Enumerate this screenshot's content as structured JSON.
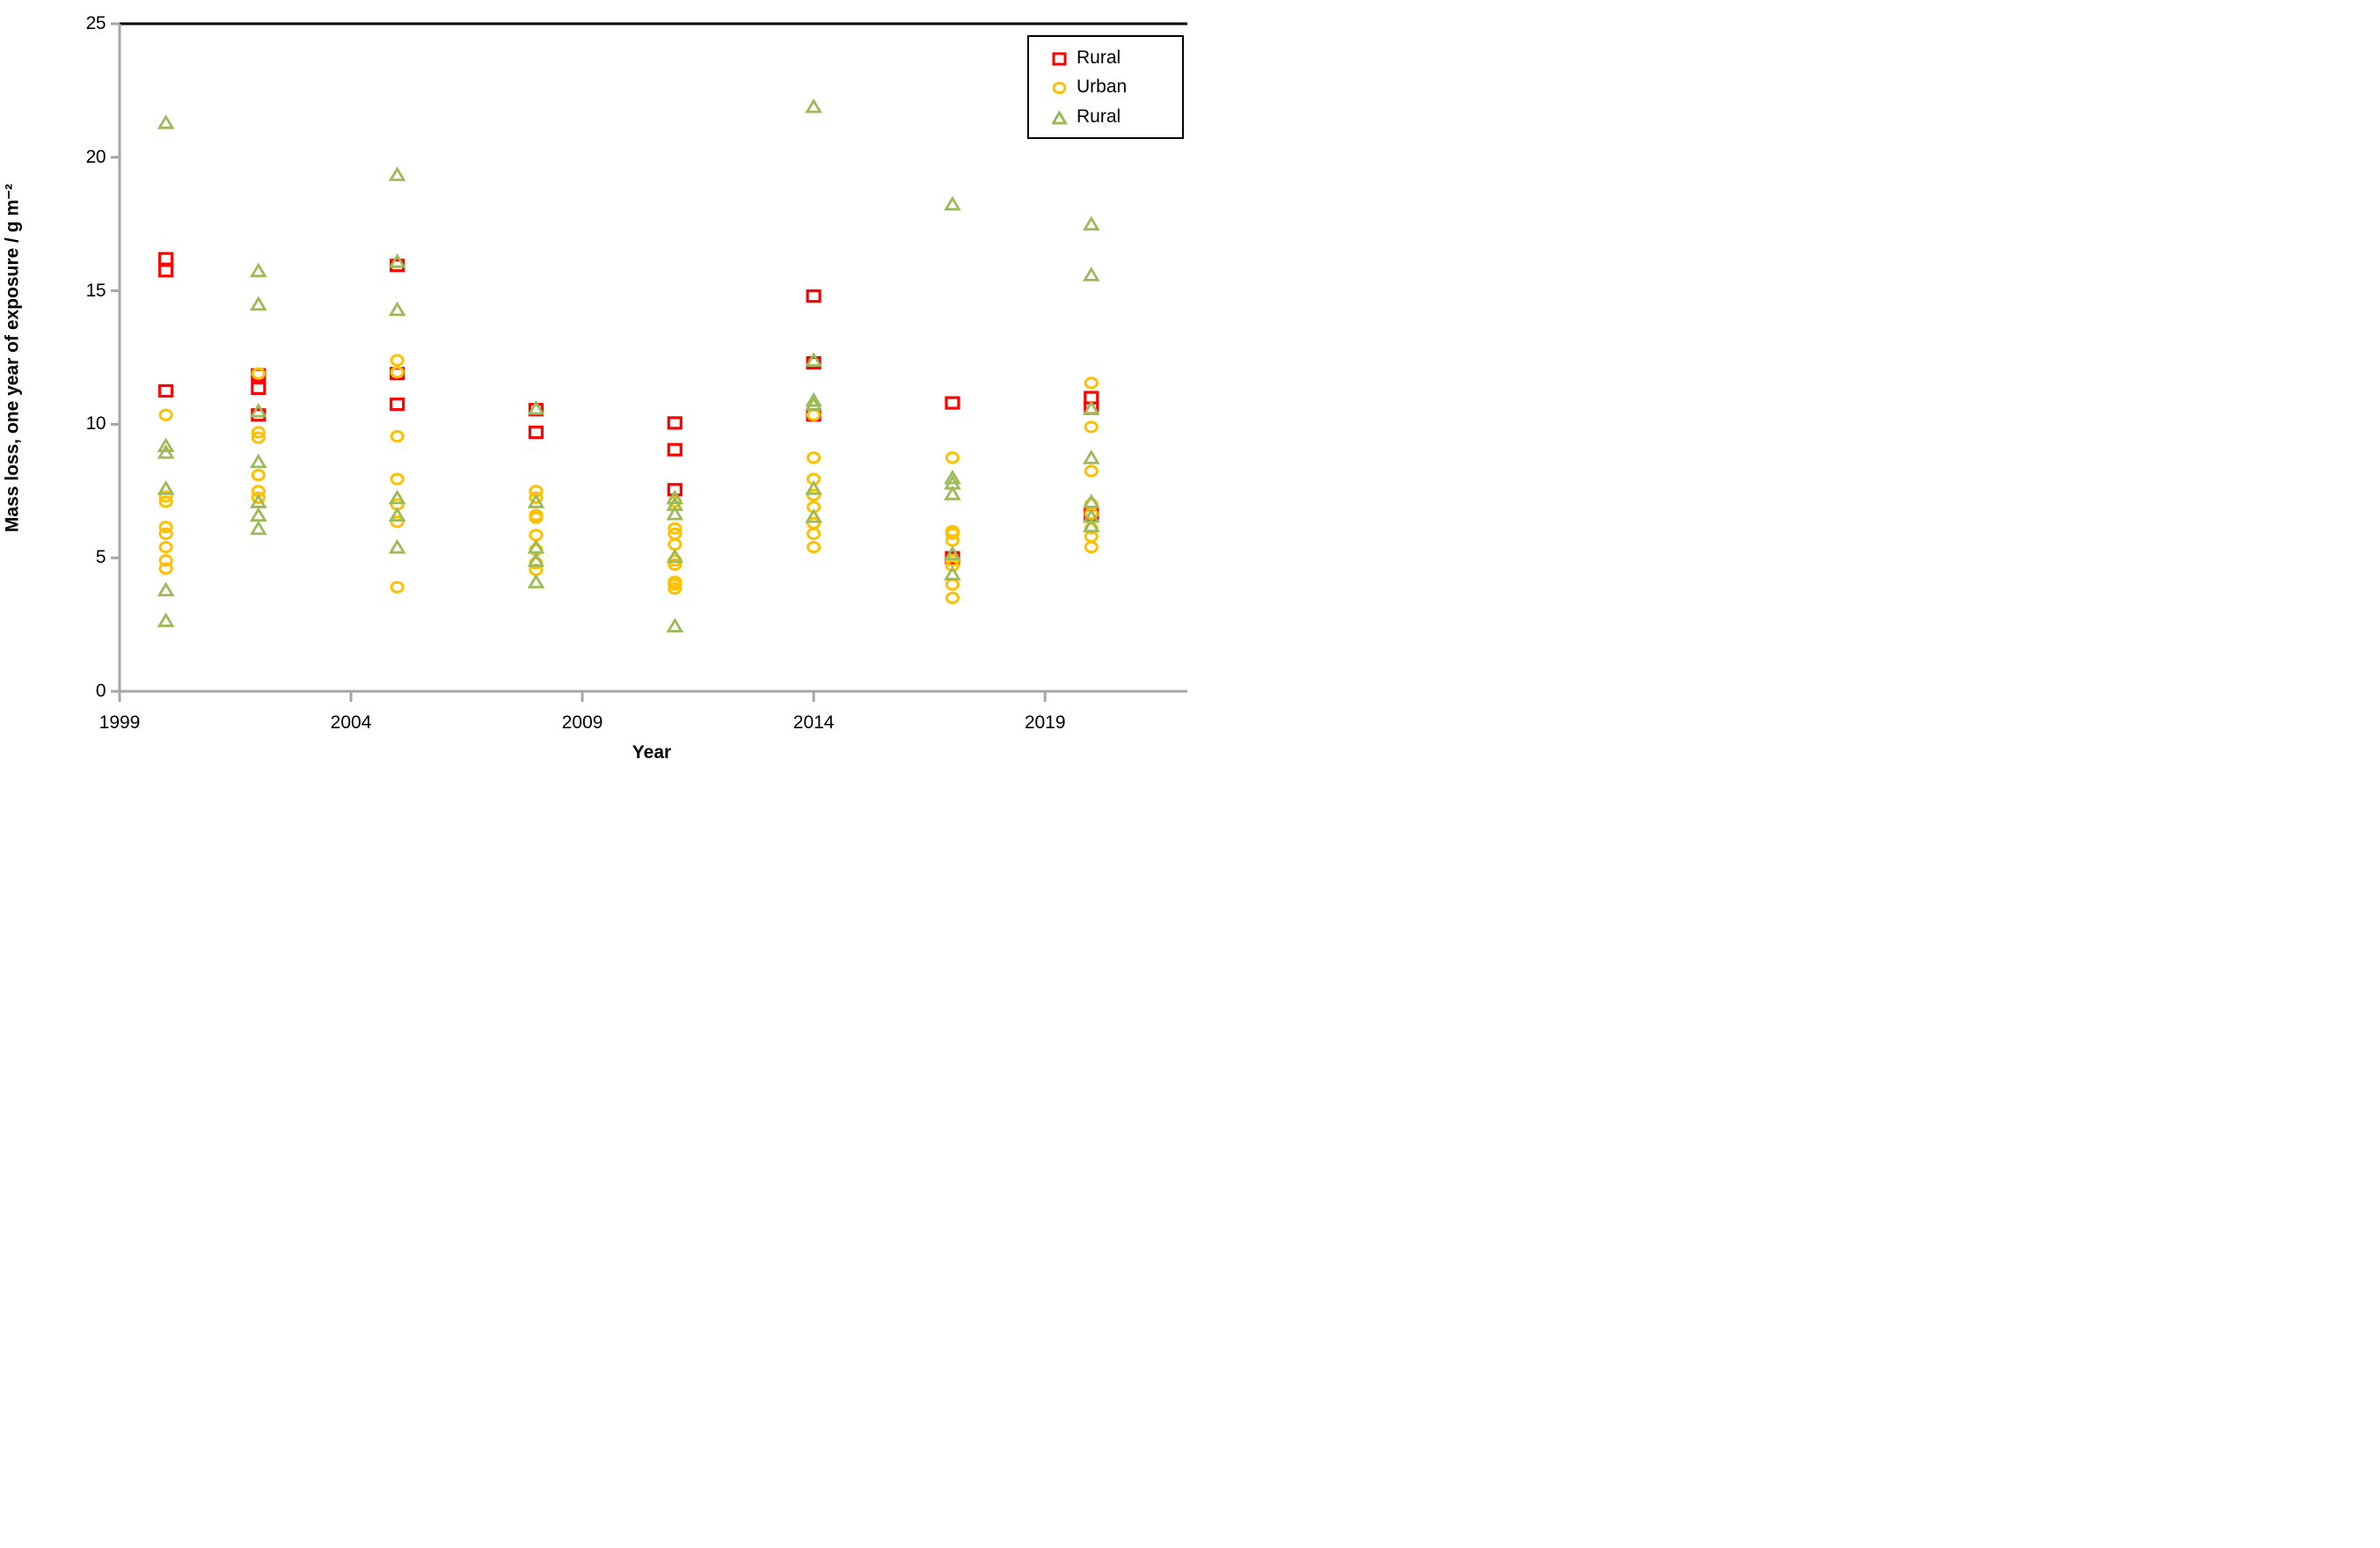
{
  "chart_data": {
    "type": "scatter",
    "title": "",
    "xlabel": "Year",
    "ylabel": "Mass loss, one year of exposure / g m⁻²",
    "xlim": [
      1999,
      2022
    ],
    "ylim": [
      0,
      25
    ],
    "x_ticks": [
      1999,
      2004,
      2009,
      2014,
      2019
    ],
    "y_ticks": [
      0,
      5,
      10,
      15,
      20,
      25
    ],
    "grid": "off",
    "legend_position": "top-right",
    "legend": [
      {
        "label": "Rural",
        "marker": "square",
        "color": "#FF0000"
      },
      {
        "label": "Urban",
        "marker": "circle",
        "color": "#FFC000"
      },
      {
        "label": "Rural",
        "marker": "triangle",
        "color": "#9BBB59"
      }
    ],
    "series": [
      {
        "name": "Rural",
        "marker": "square",
        "color": "#FF0000",
        "points": [
          {
            "x": 2000,
            "y": 16.2
          },
          {
            "x": 2000,
            "y": 15.75
          },
          {
            "x": 2000,
            "y": 11.25
          },
          {
            "x": 2002,
            "y": 11.85
          },
          {
            "x": 2002,
            "y": 11.35
          },
          {
            "x": 2002,
            "y": 10.35
          },
          {
            "x": 2005,
            "y": 15.95
          },
          {
            "x": 2005,
            "y": 11.9
          },
          {
            "x": 2005,
            "y": 10.75
          },
          {
            "x": 2008,
            "y": 10.55
          },
          {
            "x": 2008,
            "y": 9.7
          },
          {
            "x": 2011,
            "y": 10.05
          },
          {
            "x": 2011,
            "y": 9.05
          },
          {
            "x": 2011,
            "y": 7.55
          },
          {
            "x": 2014,
            "y": 14.8
          },
          {
            "x": 2014,
            "y": 12.3
          },
          {
            "x": 2014,
            "y": 10.35
          },
          {
            "x": 2017,
            "y": 10.8
          },
          {
            "x": 2017,
            "y": 5.0
          },
          {
            "x": 2020,
            "y": 11.0
          },
          {
            "x": 2020,
            "y": 10.6
          },
          {
            "x": 2020,
            "y": 6.6
          }
        ]
      },
      {
        "name": "Urban",
        "marker": "circle",
        "color": "#FFC000",
        "points": [
          {
            "x": 2000,
            "y": 10.35
          },
          {
            "x": 2000,
            "y": 7.3
          },
          {
            "x": 2000,
            "y": 7.1
          },
          {
            "x": 2000,
            "y": 6.15
          },
          {
            "x": 2000,
            "y": 5.9
          },
          {
            "x": 2000,
            "y": 5.4
          },
          {
            "x": 2000,
            "y": 4.9
          },
          {
            "x": 2000,
            "y": 4.6
          },
          {
            "x": 2002,
            "y": 11.9
          },
          {
            "x": 2002,
            "y": 9.7
          },
          {
            "x": 2002,
            "y": 9.5
          },
          {
            "x": 2002,
            "y": 8.1
          },
          {
            "x": 2002,
            "y": 7.5
          },
          {
            "x": 2002,
            "y": 7.25
          },
          {
            "x": 2005,
            "y": 12.4
          },
          {
            "x": 2005,
            "y": 11.95
          },
          {
            "x": 2005,
            "y": 9.55
          },
          {
            "x": 2005,
            "y": 7.95
          },
          {
            "x": 2005,
            "y": 7.0
          },
          {
            "x": 2005,
            "y": 6.35
          },
          {
            "x": 2005,
            "y": 3.9
          },
          {
            "x": 2008,
            "y": 7.5
          },
          {
            "x": 2008,
            "y": 7.25
          },
          {
            "x": 2008,
            "y": 6.6
          },
          {
            "x": 2008,
            "y": 6.5
          },
          {
            "x": 2008,
            "y": 5.85
          },
          {
            "x": 2008,
            "y": 5.3
          },
          {
            "x": 2008,
            "y": 4.8
          },
          {
            "x": 2008,
            "y": 4.55
          },
          {
            "x": 2011,
            "y": 7.1
          },
          {
            "x": 2011,
            "y": 6.1
          },
          {
            "x": 2011,
            "y": 5.9
          },
          {
            "x": 2011,
            "y": 5.5
          },
          {
            "x": 2011,
            "y": 4.9
          },
          {
            "x": 2011,
            "y": 4.75
          },
          {
            "x": 2011,
            "y": 4.1
          },
          {
            "x": 2011,
            "y": 4.0
          },
          {
            "x": 2011,
            "y": 3.85
          },
          {
            "x": 2014,
            "y": 10.35
          },
          {
            "x": 2014,
            "y": 8.75
          },
          {
            "x": 2014,
            "y": 7.95
          },
          {
            "x": 2014,
            "y": 7.35
          },
          {
            "x": 2014,
            "y": 6.9
          },
          {
            "x": 2014,
            "y": 6.3
          },
          {
            "x": 2014,
            "y": 5.9
          },
          {
            "x": 2014,
            "y": 5.4
          },
          {
            "x": 2017,
            "y": 8.75
          },
          {
            "x": 2017,
            "y": 6.0
          },
          {
            "x": 2017,
            "y": 5.9
          },
          {
            "x": 2017,
            "y": 5.65
          },
          {
            "x": 2017,
            "y": 4.9
          },
          {
            "x": 2017,
            "y": 4.7
          },
          {
            "x": 2017,
            "y": 4.0
          },
          {
            "x": 2017,
            "y": 3.5
          },
          {
            "x": 2020,
            "y": 11.55
          },
          {
            "x": 2020,
            "y": 9.9
          },
          {
            "x": 2020,
            "y": 8.25
          },
          {
            "x": 2020,
            "y": 7.0
          },
          {
            "x": 2020,
            "y": 6.65
          },
          {
            "x": 2020,
            "y": 6.1
          },
          {
            "x": 2020,
            "y": 5.8
          },
          {
            "x": 2020,
            "y": 5.4
          }
        ]
      },
      {
        "name": "Rural",
        "marker": "triangle",
        "color": "#9BBB59",
        "points": [
          {
            "x": 2000,
            "y": 21.3
          },
          {
            "x": 2000,
            "y": 9.2
          },
          {
            "x": 2000,
            "y": 8.95
          },
          {
            "x": 2000,
            "y": 7.6
          },
          {
            "x": 2000,
            "y": 3.8
          },
          {
            "x": 2000,
            "y": 2.65
          },
          {
            "x": 2002,
            "y": 15.75
          },
          {
            "x": 2002,
            "y": 14.5
          },
          {
            "x": 2002,
            "y": 10.5
          },
          {
            "x": 2002,
            "y": 8.6
          },
          {
            "x": 2002,
            "y": 7.1
          },
          {
            "x": 2002,
            "y": 6.6
          },
          {
            "x": 2002,
            "y": 6.1
          },
          {
            "x": 2005,
            "y": 19.35
          },
          {
            "x": 2005,
            "y": 16.1
          },
          {
            "x": 2005,
            "y": 14.3
          },
          {
            "x": 2005,
            "y": 7.25
          },
          {
            "x": 2005,
            "y": 6.6
          },
          {
            "x": 2005,
            "y": 5.4
          },
          {
            "x": 2008,
            "y": 10.6
          },
          {
            "x": 2008,
            "y": 7.1
          },
          {
            "x": 2008,
            "y": 5.4
          },
          {
            "x": 2008,
            "y": 4.9
          },
          {
            "x": 2008,
            "y": 4.1
          },
          {
            "x": 2011,
            "y": 7.25
          },
          {
            "x": 2011,
            "y": 7.0
          },
          {
            "x": 2011,
            "y": 6.65
          },
          {
            "x": 2011,
            "y": 5.05
          },
          {
            "x": 2011,
            "y": 2.45
          },
          {
            "x": 2014,
            "y": 21.9
          },
          {
            "x": 2014,
            "y": 12.4
          },
          {
            "x": 2014,
            "y": 10.9
          },
          {
            "x": 2014,
            "y": 10.75
          },
          {
            "x": 2014,
            "y": 7.6
          },
          {
            "x": 2014,
            "y": 6.55
          },
          {
            "x": 2017,
            "y": 18.25
          },
          {
            "x": 2017,
            "y": 8.0
          },
          {
            "x": 2017,
            "y": 7.8
          },
          {
            "x": 2017,
            "y": 7.4
          },
          {
            "x": 2017,
            "y": 5.15
          },
          {
            "x": 2017,
            "y": 4.4
          },
          {
            "x": 2020,
            "y": 17.5
          },
          {
            "x": 2020,
            "y": 15.6
          },
          {
            "x": 2020,
            "y": 10.6
          },
          {
            "x": 2020,
            "y": 8.75
          },
          {
            "x": 2020,
            "y": 7.1
          },
          {
            "x": 2020,
            "y": 6.55
          },
          {
            "x": 2020,
            "y": 6.2
          }
        ]
      }
    ]
  }
}
